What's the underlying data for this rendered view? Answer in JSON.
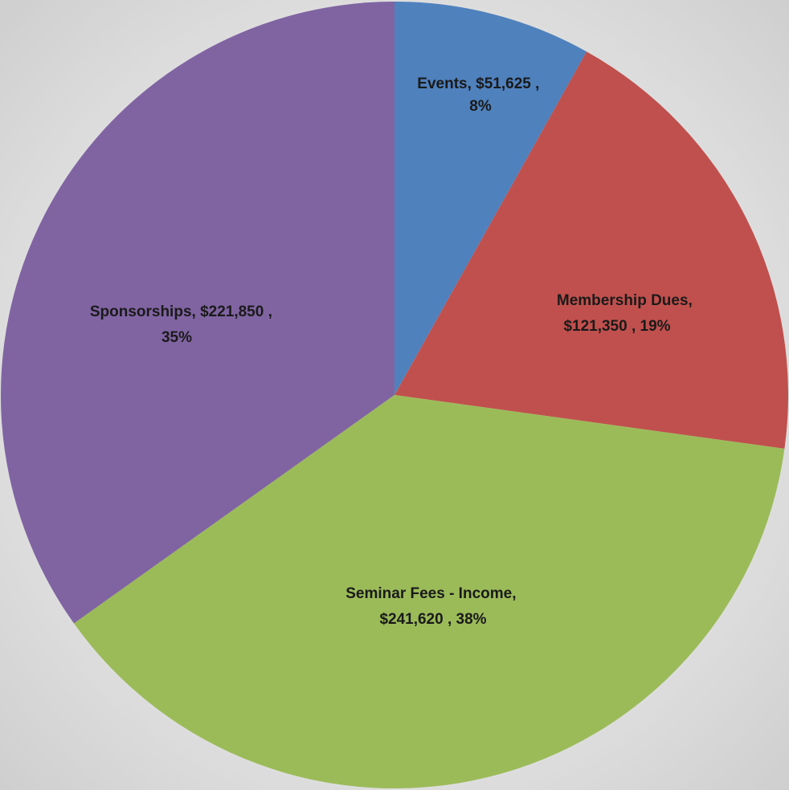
{
  "chart_data": {
    "type": "pie",
    "title": "",
    "slices": [
      {
        "name": "Events",
        "value": 51625,
        "label_line1": "Events,  $51,625 ,",
        "label_line2": "8%",
        "color": "#4f81bd"
      },
      {
        "name": "Membership Dues",
        "value": 121350,
        "label_line1": "Membership Dues,",
        "label_line2": "$121,350 , 19%",
        "color": "#c0504d"
      },
      {
        "name": "Seminar Fees - Income",
        "value": 241620,
        "label_line1": "Seminar Fees - Income,",
        "label_line2": "$241,620 , 38%",
        "color": "#9bbb59"
      },
      {
        "name": "Sponsorships",
        "value": 221850,
        "label_line1": "Sponsorships,  $221,850 ,",
        "label_line2": "35%",
        "color": "#8064a2"
      }
    ],
    "start_angle_deg": 0,
    "direction": "clockwise",
    "legend": "none"
  }
}
